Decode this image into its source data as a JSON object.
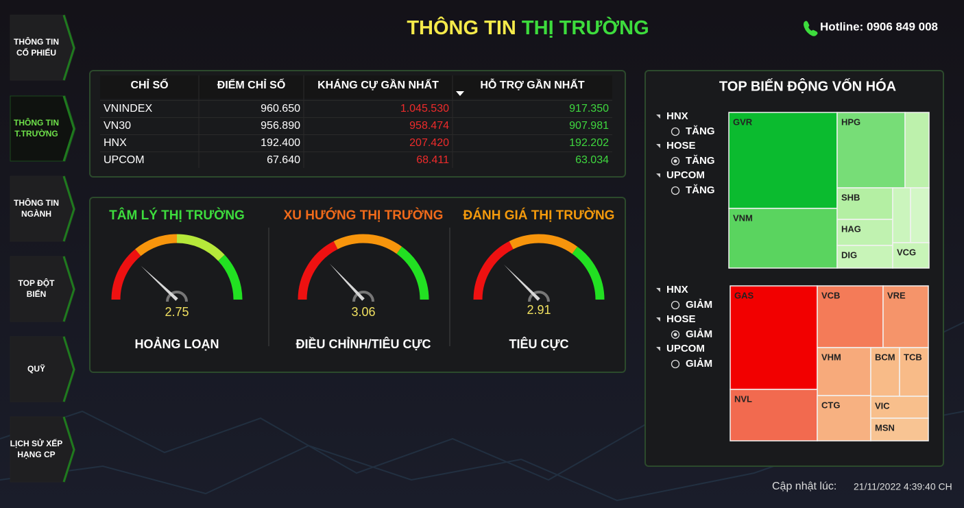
{
  "nav": [
    [
      "THÔNG TIN",
      "CỔ PHIẾU"
    ],
    [
      "THÔNG TIN",
      "T.TRƯỜNG"
    ],
    [
      "THÔNG TIN",
      "NGÀNH"
    ],
    [
      "TOP ĐỘT",
      "BIẾN"
    ],
    [
      "QUỸ"
    ],
    [
      "LỊCH SỬ XẾP",
      "HẠNG CP"
    ]
  ],
  "header": {
    "title_part1": "THÔNG TIN",
    "title_part2": "THỊ TRƯỜNG",
    "hotline": "Hotline: 0906 849 008"
  },
  "table": {
    "columns": [
      "CHỈ SỐ",
      "ĐIỂM CHỈ SỐ",
      "KHÁNG CỰ GẦN NHẤT",
      "HỖ TRỢ GẦN NHẤT"
    ],
    "rows": [
      [
        "VNINDEX",
        "960.650",
        "1.045.530",
        "917.350"
      ],
      [
        "VN30",
        "956.890",
        "958.474",
        "907.981"
      ],
      [
        "HNX",
        "192.400",
        "207.420",
        "192.202"
      ],
      [
        "UPCOM",
        "67.640",
        "68.411",
        "63.034"
      ]
    ]
  },
  "gauges": [
    {
      "title": "TÂM LÝ THỊ TRƯỜNG",
      "value": "2.75",
      "label": "HOẢNG LOẠN"
    },
    {
      "title": "XU HƯỚNG THỊ TRƯỜNG",
      "value": "3.06",
      "label": "ĐIỀU CHỈNH/TIÊU CỰC"
    },
    {
      "title": "ĐÁNH GIÁ THỊ TRƯỜNG",
      "value": "2.91",
      "label": "TIÊU CỰC"
    }
  ],
  "treemap": {
    "title": "TOP BIẾN ĐỘNG VỐN HÓA",
    "up_filters": [
      {
        "exchange": "HNX",
        "option": "TĂNG"
      },
      {
        "exchange": "HOSE",
        "option": "TĂNG"
      },
      {
        "exchange": "UPCOM",
        "option": "TĂNG"
      }
    ],
    "up": [
      "GVR",
      "HPG",
      "VNM",
      "SHB",
      "HAG",
      "DIG",
      "VCG"
    ],
    "down_filters": [
      {
        "exchange": "HNX",
        "option": "GIẢM"
      },
      {
        "exchange": "HOSE",
        "option": "GIẢM"
      },
      {
        "exchange": "UPCOM",
        "option": "GIẢM"
      }
    ],
    "down": [
      "GAS",
      "VCB",
      "VRE",
      "VHM",
      "BCM",
      "TCB",
      "NVL",
      "CTG",
      "VIC",
      "MSN"
    ]
  },
  "footer": {
    "updated_label": "Cập nhật lúc:",
    "updated_time": "21/11/2022 4:39:40 CH"
  }
}
